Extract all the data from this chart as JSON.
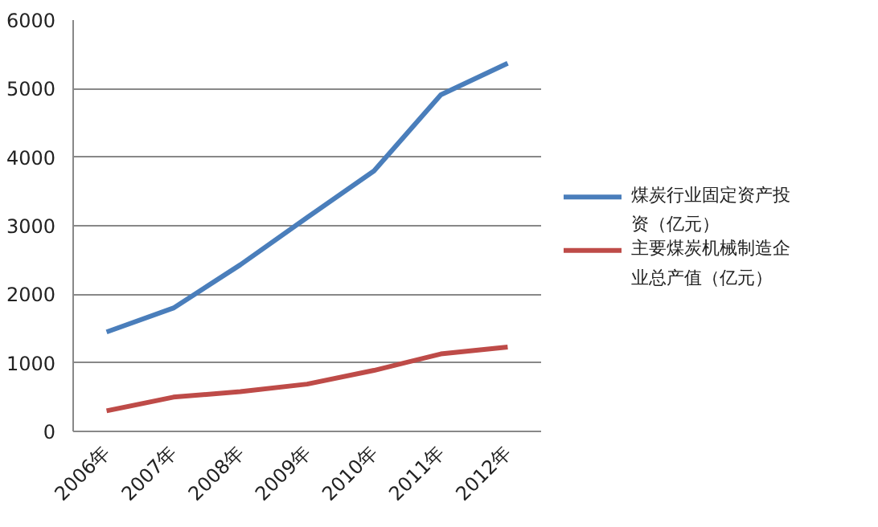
{
  "chart_data": {
    "type": "line",
    "categories": [
      "2006年",
      "2007年",
      "2008年",
      "2009年",
      "2010年",
      "2011年",
      "2012年"
    ],
    "series": [
      {
        "name": "煤炭行业固定资产投资（亿元）",
        "color": "#4a7ebb",
        "values": [
          1450,
          1800,
          2430,
          3120,
          3800,
          4910,
          5370
        ]
      },
      {
        "name": "主要煤炭机械制造企业总产值（亿元）",
        "color": "#be4b48",
        "values": [
          300,
          500,
          580,
          690,
          890,
          1130,
          1230
        ]
      }
    ],
    "ylim": [
      0,
      6000
    ],
    "yticks": [
      0,
      1000,
      2000,
      3000,
      4000,
      5000,
      6000
    ],
    "grid": "y",
    "legend": "right",
    "marker": "none",
    "line_style": "solid"
  }
}
